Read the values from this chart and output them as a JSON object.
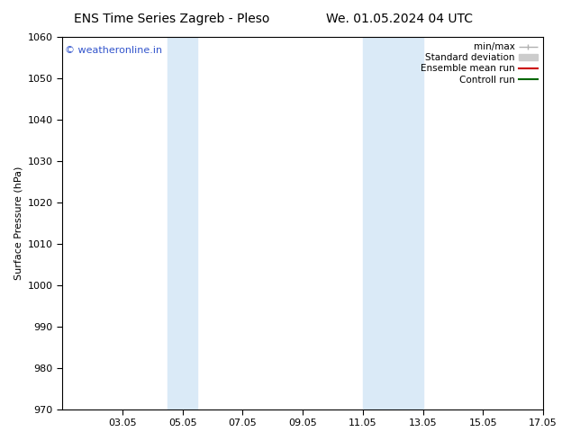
{
  "title_left": "ENS Time Series Zagreb - Pleso",
  "title_right": "We. 01.05.2024 04 UTC",
  "ylabel": "Surface Pressure (hPa)",
  "ylim": [
    970,
    1060
  ],
  "yticks": [
    970,
    980,
    990,
    1000,
    1010,
    1020,
    1030,
    1040,
    1050,
    1060
  ],
  "xlim_start": 1,
  "xlim_end": 17,
  "xtick_labels": [
    "03.05",
    "05.05",
    "07.05",
    "09.05",
    "11.05",
    "13.05",
    "15.05",
    "17.05"
  ],
  "xtick_positions": [
    3,
    5,
    7,
    9,
    11,
    13,
    15,
    17
  ],
  "shaded_bands": [
    {
      "x_start": 4.5,
      "x_end": 5.5,
      "color": "#daeaf7"
    },
    {
      "x_start": 11.0,
      "x_end": 13.0,
      "color": "#daeaf7"
    }
  ],
  "watermark_text": "© weatheronline.in",
  "watermark_color": "#3355cc",
  "watermark_fontsize": 8,
  "legend_items": [
    {
      "label": "min/max",
      "color": "#b0b0b0",
      "lw": 1.0
    },
    {
      "label": "Standard deviation",
      "color": "#cccccc",
      "lw": 6
    },
    {
      "label": "Ensemble mean run",
      "color": "#cc0000",
      "lw": 1.5
    },
    {
      "label": "Controll run",
      "color": "#006600",
      "lw": 1.5
    }
  ],
  "bg_color": "#ffffff",
  "plot_bg_color": "#ffffff",
  "title_fontsize": 10,
  "axis_label_fontsize": 8,
  "tick_fontsize": 8,
  "legend_fontsize": 7.5
}
